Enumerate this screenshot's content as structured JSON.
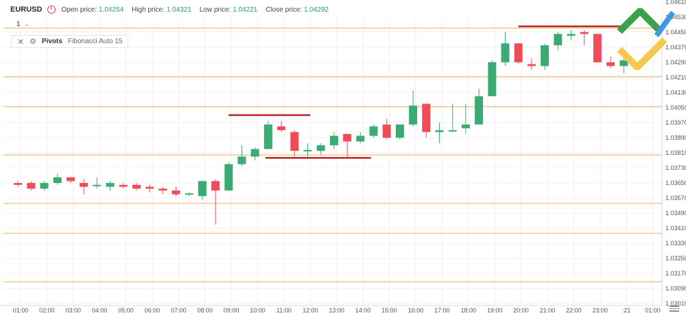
{
  "header": {
    "symbol": "EURUSD",
    "interval": "1",
    "open_label": "Open price:",
    "open_value": "1.04254",
    "high_label": "High price:",
    "high_value": "1.04321",
    "low_label": "Low price:",
    "low_value": "1.04221",
    "close_label": "Close price:",
    "close_value": "1.04292"
  },
  "indicator": {
    "name": "Pivots",
    "description": "Fibonacci Auto 15"
  },
  "colors": {
    "up": "#3cab73",
    "down": "#ef4b58",
    "pivot_line": "#f2c78a",
    "marker_line": "#b82323",
    "grid": "#f0f0f0",
    "axis_text": "#555555"
  },
  "icons": [
    "clock-icon",
    "close-icon",
    "gear-icon",
    "settings-icon",
    "chevron-down-icon",
    "logo"
  ],
  "chart_data": {
    "type": "candlestick",
    "x_ticks": [
      "01:00",
      "02:00",
      "03:00",
      "04:00",
      "05:00",
      "06:00",
      "07:00",
      "08:00",
      "09:00",
      "10:00",
      "11:00",
      "12:00",
      "13:00",
      "14:00",
      "15:00",
      "16:00",
      "17:00",
      "18:00",
      "19:00",
      "20:00",
      "21:00",
      "22:00",
      "23:00",
      ":21",
      "01:00"
    ],
    "y_ticks": [
      "1.04610",
      "1.04530",
      "1.04450",
      "1.04370",
      "1.04290",
      "1.04210",
      "1.04130",
      "1.04050",
      "1.03970",
      "1.03890",
      "1.03810",
      "1.03730",
      "1.03650",
      "1.03570",
      "1.03490",
      "1.03410",
      "1.03330",
      "1.03250",
      "1.03170",
      "1.03090",
      "1.03010"
    ],
    "ylim": [
      1.03,
      1.0462
    ],
    "pivot_levels": [
      1.04471,
      1.04213,
      1.04055,
      1.03798,
      1.03542,
      1.03383,
      1.03126
    ],
    "candles": [
      {
        "x": 0.9,
        "o": 1.0365,
        "h": 1.0366,
        "l": 1.0363,
        "c": 1.0364
      },
      {
        "x": 1.4,
        "o": 1.0365,
        "h": 1.0366,
        "l": 1.0361,
        "c": 1.0362
      },
      {
        "x": 1.9,
        "o": 1.0362,
        "h": 1.0366,
        "l": 1.0361,
        "c": 1.0365
      },
      {
        "x": 2.4,
        "o": 1.0365,
        "h": 1.037,
        "l": 1.0364,
        "c": 1.0368
      },
      {
        "x": 2.9,
        "o": 1.0368,
        "h": 1.0368,
        "l": 1.0365,
        "c": 1.0366
      },
      {
        "x": 3.4,
        "o": 1.0365,
        "h": 1.0367,
        "l": 1.0359,
        "c": 1.0363
      },
      {
        "x": 3.9,
        "o": 1.0364,
        "h": 1.0368,
        "l": 1.0362,
        "c": 1.0364
      },
      {
        "x": 4.4,
        "o": 1.0363,
        "h": 1.0366,
        "l": 1.0361,
        "c": 1.0365
      },
      {
        "x": 4.9,
        "o": 1.0364,
        "h": 1.0365,
        "l": 1.0362,
        "c": 1.0363
      },
      {
        "x": 5.4,
        "o": 1.0364,
        "h": 1.0365,
        "l": 1.0361,
        "c": 1.0362
      },
      {
        "x": 5.9,
        "o": 1.0363,
        "h": 1.0364,
        "l": 1.036,
        "c": 1.0362
      },
      {
        "x": 6.4,
        "o": 1.0362,
        "h": 1.0363,
        "l": 1.0359,
        "c": 1.0361
      },
      {
        "x": 6.9,
        "o": 1.0361,
        "h": 1.0363,
        "l": 1.0358,
        "c": 1.0359
      },
      {
        "x": 7.4,
        "o": 1.0359,
        "h": 1.036,
        "l": 1.0358,
        "c": 1.03595
      },
      {
        "x": 7.9,
        "o": 1.0358,
        "h": 1.0366,
        "l": 1.0356,
        "c": 1.0366
      },
      {
        "x": 8.4,
        "o": 1.0366,
        "h": 1.0367,
        "l": 1.0343,
        "c": 1.0361
      },
      {
        "x": 8.9,
        "o": 1.0361,
        "h": 1.0376,
        "l": 1.0361,
        "c": 1.0375
      },
      {
        "x": 9.4,
        "o": 1.0375,
        "h": 1.0385,
        "l": 1.0374,
        "c": 1.0379
      },
      {
        "x": 9.9,
        "o": 1.0379,
        "h": 1.0384,
        "l": 1.0377,
        "c": 1.0383
      },
      {
        "x": 10.4,
        "o": 1.0383,
        "h": 1.0398,
        "l": 1.0383,
        "c": 1.0396
      },
      {
        "x": 10.9,
        "o": 1.0395,
        "h": 1.0398,
        "l": 1.0392,
        "c": 1.0393
      },
      {
        "x": 11.4,
        "o": 1.0392,
        "h": 1.0393,
        "l": 1.0379,
        "c": 1.0382
      },
      {
        "x": 11.9,
        "o": 1.0382,
        "h": 1.0386,
        "l": 1.0379,
        "c": 1.03825
      },
      {
        "x": 12.4,
        "o": 1.0382,
        "h": 1.0386,
        "l": 1.038,
        "c": 1.0385
      },
      {
        "x": 12.9,
        "o": 1.0385,
        "h": 1.0392,
        "l": 1.0383,
        "c": 1.039
      },
      {
        "x": 13.4,
        "o": 1.0391,
        "h": 1.0391,
        "l": 1.0378,
        "c": 1.0387
      },
      {
        "x": 13.9,
        "o": 1.0387,
        "h": 1.0392,
        "l": 1.0386,
        "c": 1.039
      },
      {
        "x": 14.4,
        "o": 1.039,
        "h": 1.0396,
        "l": 1.0389,
        "c": 1.0395
      },
      {
        "x": 14.9,
        "o": 1.0396,
        "h": 1.0399,
        "l": 1.0388,
        "c": 1.0389
      },
      {
        "x": 15.4,
        "o": 1.0389,
        "h": 1.0396,
        "l": 1.0388,
        "c": 1.0396
      },
      {
        "x": 15.9,
        "o": 1.0396,
        "h": 1.0414,
        "l": 1.0395,
        "c": 1.0406
      },
      {
        "x": 16.4,
        "o": 1.0407,
        "h": 1.0407,
        "l": 1.0389,
        "c": 1.0392
      },
      {
        "x": 16.9,
        "o": 1.0392,
        "h": 1.0397,
        "l": 1.0386,
        "c": 1.0393
      },
      {
        "x": 17.4,
        "o": 1.0393,
        "h": 1.0407,
        "l": 1.0392,
        "c": 1.0393
      },
      {
        "x": 17.9,
        "o": 1.0394,
        "h": 1.0407,
        "l": 1.0391,
        "c": 1.0396
      },
      {
        "x": 18.4,
        "o": 1.0396,
        "h": 1.0415,
        "l": 1.0396,
        "c": 1.0411
      },
      {
        "x": 18.9,
        "o": 1.0411,
        "h": 1.043,
        "l": 1.0411,
        "c": 1.0429
      },
      {
        "x": 19.4,
        "o": 1.0429,
        "h": 1.0445,
        "l": 1.0427,
        "c": 1.0439
      },
      {
        "x": 19.9,
        "o": 1.0439,
        "h": 1.0439,
        "l": 1.0428,
        "c": 1.0429
      },
      {
        "x": 20.4,
        "o": 1.0428,
        "h": 1.0431,
        "l": 1.0425,
        "c": 1.0427
      },
      {
        "x": 20.9,
        "o": 1.0427,
        "h": 1.0439,
        "l": 1.0425,
        "c": 1.0438
      },
      {
        "x": 21.4,
        "o": 1.0438,
        "h": 1.0445,
        "l": 1.0435,
        "c": 1.0444
      },
      {
        "x": 21.9,
        "o": 1.0443,
        "h": 1.0446,
        "l": 1.0441,
        "c": 1.0444
      },
      {
        "x": 22.4,
        "o": 1.0445,
        "h": 1.0446,
        "l": 1.0438,
        "c": 1.0444
      },
      {
        "x": 22.9,
        "o": 1.0444,
        "h": 1.0444,
        "l": 1.0429,
        "c": 1.0429
      },
      {
        "x": 23.4,
        "o": 1.0429,
        "h": 1.0432,
        "l": 1.0426,
        "c": 1.0427
      },
      {
        "x": 23.9,
        "o": 1.0427,
        "h": 1.0431,
        "l": 1.0423,
        "c": 1.043
      }
    ],
    "markers": [
      {
        "x1": 8.9,
        "x2": 12.0,
        "y": 1.0401
      },
      {
        "x1": 10.3,
        "x2": 14.3,
        "y": 1.03783
      },
      {
        "x1": 19.9,
        "x2": 23.9,
        "y": 1.0448
      }
    ],
    "x_range": [
      0.35,
      25.35
    ]
  }
}
